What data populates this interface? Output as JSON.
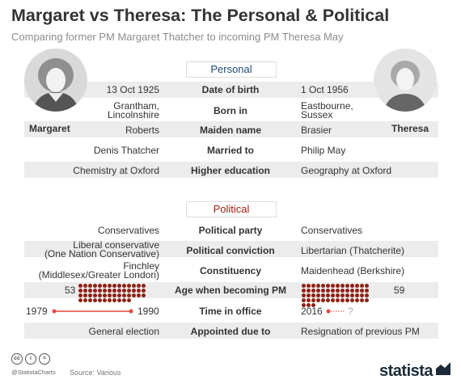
{
  "title": "Margaret vs Theresa: The Personal & Political",
  "subtitle": "Comparing former PM Margaret Thatcher to incoming PM Theresa May",
  "people": {
    "left": "Margaret",
    "right": "Theresa"
  },
  "colors": {
    "personal": "#1f4b73",
    "political": "#a51b13",
    "dots": "#8e2116",
    "band": "#ececec"
  },
  "chart_data": {
    "type": "table",
    "sections": [
      {
        "label": "Personal",
        "rows": [
          {
            "category": "Date of birth",
            "margaret": "13 Oct 1925",
            "theresa": "1 Oct 1956"
          },
          {
            "category": "Born in",
            "margaret": [
              "Grantham,",
              "Lincolnshire"
            ],
            "theresa": [
              "Eastbourne,",
              "Sussex"
            ]
          },
          {
            "category": "Maiden name",
            "margaret": "Roberts",
            "theresa": "Brasier"
          },
          {
            "category": "Married to",
            "margaret": "Denis Thatcher",
            "theresa": "Philip May"
          },
          {
            "category": "Higher education",
            "margaret": "Chemistry at Oxford",
            "theresa": "Geography at Oxford"
          }
        ]
      },
      {
        "label": "Political",
        "rows": [
          {
            "category": "Political party",
            "margaret": "Conservatives",
            "theresa": "Conservatives"
          },
          {
            "category": "Political conviction",
            "margaret": [
              "Liberal conservative",
              "(One Nation Conservative)"
            ],
            "theresa": "Libertarian  (Thatcherite)"
          },
          {
            "category": "Constituency",
            "margaret": [
              "Finchley",
              "(Middlesex/Greater London)"
            ],
            "theresa": "Maidenhead (Berkshire)"
          },
          {
            "category": "Age when becoming PM",
            "margaret": 53,
            "theresa": 59
          },
          {
            "category": "Time in office",
            "margaret": {
              "start": 1979,
              "end": 1990
            },
            "theresa": {
              "start": 2016,
              "end": "?"
            }
          },
          {
            "category": "Appointed due to",
            "margaret": "General election",
            "theresa": "Resignation of previous PM"
          }
        ]
      }
    ]
  },
  "footer": {
    "handle": "@StatistaCharts",
    "source": "Source: Various",
    "brand": "statista"
  }
}
